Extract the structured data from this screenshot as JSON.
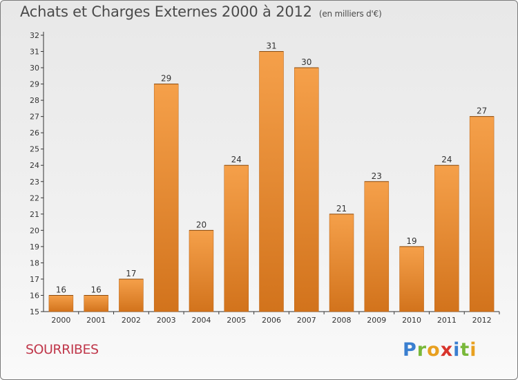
{
  "header": {
    "title": "Achats et Charges Externes 2000 à 2012",
    "unit": "(en milliers d'€)"
  },
  "footer": {
    "commune": "SOURRIBES",
    "logo": [
      "P",
      "r",
      "o",
      "x",
      "i",
      "t",
      "i"
    ]
  },
  "colors": {
    "bar_top": "#f5a04a",
    "bar_bottom": "#d2731c",
    "axis": "#333333"
  },
  "chart_data": {
    "type": "bar",
    "categories": [
      "2000",
      "2001",
      "2002",
      "2003",
      "2004",
      "2005",
      "2006",
      "2007",
      "2008",
      "2009",
      "2010",
      "2011",
      "2012"
    ],
    "values": [
      16,
      16,
      17,
      29,
      20,
      24,
      31,
      30,
      21,
      23,
      19,
      24,
      27
    ],
    "data_labels": [
      "16",
      "16",
      "17",
      "29",
      "20",
      "24",
      "31",
      "30",
      "21",
      "23",
      "19",
      "24",
      "27"
    ],
    "ylim": [
      15,
      32
    ],
    "yticks": [
      "15",
      "16",
      "17",
      "18",
      "19",
      "20",
      "21",
      "22",
      "23",
      "24",
      "25",
      "26",
      "27",
      "28",
      "29",
      "30",
      "31",
      "32"
    ],
    "title": "Achats et Charges Externes 2000 à 2012",
    "xlabel": "",
    "ylabel": "",
    "grid": false
  }
}
